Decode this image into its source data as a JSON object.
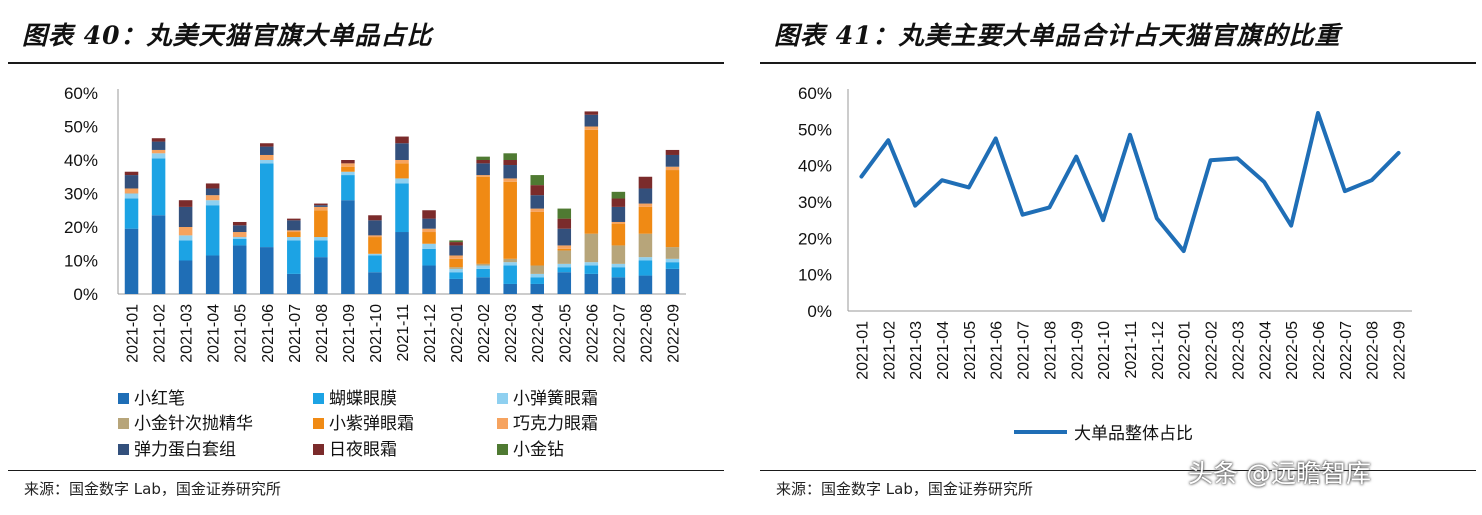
{
  "panels": {
    "left": {
      "title": "图表 40：丸美天猫官旗大单品占比",
      "source": "来源：国金数字 Lab，国金证券研究所"
    },
    "right": {
      "title": "图表 41：丸美主要大单品合计占天猫官旗的比重",
      "source": "来源：国金数字 Lab，国金证券研究所"
    }
  },
  "watermark": "头条 @远瞻智库",
  "chart_data": [
    {
      "type": "bar",
      "stacked": true,
      "categories": [
        "2021-01",
        "2021-02",
        "2021-03",
        "2021-04",
        "2021-05",
        "2021-06",
        "2021-07",
        "2021-08",
        "2021-09",
        "2021-10",
        "2021-11",
        "2021-12",
        "2022-01",
        "2022-02",
        "2022-03",
        "2022-04",
        "2022-05",
        "2022-06",
        "2022-07",
        "2022-08",
        "2022-09"
      ],
      "yticks": [
        "0%",
        "10%",
        "20%",
        "30%",
        "40%",
        "50%",
        "60%"
      ],
      "ylim": [
        0,
        60
      ],
      "legend_position": "bottom",
      "series": [
        {
          "name": "小红笔",
          "color": "#1f6eb6",
          "values": [
            19.5,
            23.5,
            10,
            11.5,
            14.5,
            14,
            6,
            11,
            28,
            6.5,
            18.5,
            8.5,
            4.5,
            5,
            3,
            3,
            6.5,
            6,
            5,
            5.5,
            7.5
          ]
        },
        {
          "name": "蝴蝶眼膜",
          "color": "#1ca3e4",
          "values": [
            9,
            17,
            6,
            15,
            2,
            25,
            10,
            5,
            7.5,
            5,
            14.5,
            5,
            2,
            2.5,
            5.5,
            2,
            1.5,
            2.5,
            3,
            4.5,
            2
          ]
        },
        {
          "name": "小弹簧眼霜",
          "color": "#8fd0f0",
          "values": [
            1.5,
            1.5,
            1.5,
            1.5,
            0.5,
            1,
            1,
            1,
            1,
            0.5,
            1.5,
            1.5,
            1,
            1,
            1,
            1,
            1,
            1,
            1,
            1,
            1
          ]
        },
        {
          "name": "小金针次抛精华",
          "color": "#b7a57a",
          "values": [
            0,
            0,
            0,
            0,
            0,
            0,
            0,
            0,
            0,
            0,
            0,
            0,
            0.5,
            0.5,
            1,
            2.5,
            4,
            8.5,
            5.5,
            7,
            3.5
          ]
        },
        {
          "name": "小紫弹眼霜",
          "color": "#f08a14",
          "values": [
            0,
            0,
            0,
            0,
            0,
            0,
            1.5,
            8,
            1.5,
            5,
            4.5,
            3.5,
            2.5,
            26,
            23,
            16,
            0.5,
            31,
            6.5,
            8,
            23
          ]
        },
        {
          "name": "巧克力眼霜",
          "color": "#f6a35f",
          "values": [
            1.5,
            1,
            2.5,
            1.5,
            1.5,
            1.5,
            0.5,
            1,
            1,
            0.5,
            1,
            1,
            1,
            0.5,
            1,
            1,
            1,
            1,
            0.5,
            1,
            1
          ]
        },
        {
          "name": "弹力蛋白套组",
          "color": "#33507c",
          "values": [
            4,
            2.5,
            6,
            2,
            2,
            2.5,
            3,
            0.5,
            0,
            4.5,
            5,
            3,
            3,
            3.5,
            4,
            4,
            5,
            3.5,
            4.5,
            4.5,
            3.5
          ]
        },
        {
          "name": "日夜眼霜",
          "color": "#7b2b2b",
          "values": [
            1,
            1,
            2,
            1.5,
            1,
            1,
            0.5,
            0.5,
            1,
            1.5,
            2,
            2.5,
            1,
            1,
            1.5,
            3,
            3,
            1,
            2.5,
            3.5,
            1.5
          ]
        },
        {
          "name": "小金钻",
          "color": "#4f7a32",
          "values": [
            0,
            0,
            0,
            0,
            0,
            0,
            0,
            0,
            0,
            0,
            0,
            0,
            0.5,
            1,
            2,
            3,
            3,
            0,
            2,
            0,
            0
          ]
        }
      ]
    },
    {
      "type": "line",
      "x": [
        "2021-01",
        "2021-02",
        "2021-03",
        "2021-04",
        "2021-05",
        "2021-06",
        "2021-07",
        "2021-08",
        "2021-09",
        "2021-10",
        "2021-11",
        "2021-12",
        "2022-01",
        "2022-02",
        "2022-03",
        "2022-04",
        "2022-05",
        "2022-06",
        "2022-07",
        "2022-08",
        "2022-09"
      ],
      "yticks": [
        "0%",
        "10%",
        "20%",
        "30%",
        "40%",
        "50%",
        "60%"
      ],
      "ylim": [
        0,
        60
      ],
      "legend_position": "bottom",
      "series": [
        {
          "name": "大单品整体占比",
          "color": "#1f6eb6",
          "values": [
            37,
            47,
            29,
            36,
            34,
            47.5,
            26.5,
            28.5,
            42.5,
            25,
            48.5,
            25.5,
            16.5,
            41.5,
            42,
            35.5,
            23.5,
            54.5,
            33,
            36,
            43.5
          ]
        }
      ]
    }
  ]
}
